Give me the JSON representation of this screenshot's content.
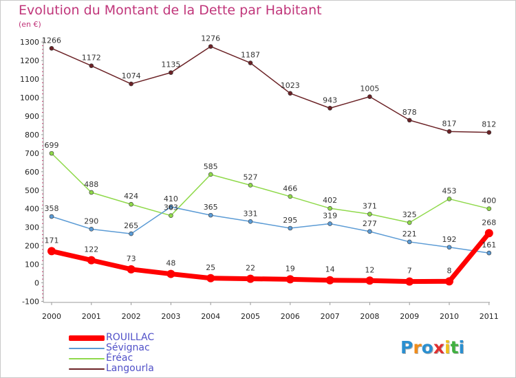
{
  "header": {
    "title": "Evolution du Montant de la Dette par Habitant",
    "subtitle": "(en €)"
  },
  "colors": {
    "title": "#c0357a",
    "ROUILLAC": "#ff0000",
    "Sévignac": "#5b9bd5",
    "Éréac": "#8fd94a",
    "Langourla": "#6b2226"
  },
  "logo": {
    "letters": [
      "P",
      "r",
      "o",
      "x",
      "i",
      "t",
      "i"
    ],
    "colors": [
      "#2a8fd0",
      "#f08c1a",
      "#2a8fd0",
      "#e03030",
      "#f0c01a",
      "#40b040",
      "#2a8fd0"
    ]
  },
  "chart_data": {
    "type": "line",
    "x": [
      "2000",
      "2001",
      "2002",
      "2003",
      "2004",
      "2005",
      "2006",
      "2007",
      "2008",
      "2009",
      "2010",
      "2011"
    ],
    "ylim": [
      -100,
      1300
    ],
    "yticks": [
      "-100",
      "0",
      "100",
      "200",
      "300",
      "400",
      "500",
      "600",
      "700",
      "800",
      "900",
      "1000",
      "1100",
      "1200",
      "1300"
    ],
    "xlabel": "",
    "ylabel": "",
    "grid": false,
    "legend_position": "bottom-left",
    "series": [
      {
        "name": "ROUILLAC",
        "values": [
          171,
          122,
          73,
          48,
          25,
          22,
          19,
          14,
          12,
          7,
          8,
          268
        ],
        "labels": [
          "171",
          "122",
          "73",
          "48",
          "25",
          "22",
          "19",
          "14",
          "12",
          "7",
          "8",
          "268"
        ]
      },
      {
        "name": "Sévignac",
        "values": [
          358,
          290,
          265,
          410,
          365,
          331,
          295,
          319,
          277,
          221,
          192,
          161
        ],
        "labels": [
          "358",
          "290",
          "265",
          "410",
          "365",
          "331",
          "295",
          "319",
          "277",
          "221",
          "192",
          "161"
        ]
      },
      {
        "name": "Éréac",
        "values": [
          699,
          488,
          424,
          363,
          585,
          527,
          466,
          402,
          371,
          325,
          453,
          400
        ],
        "labels": [
          "699",
          "488",
          "424",
          "363",
          "585",
          "527",
          "466",
          "402",
          "371",
          "325",
          "453",
          "400"
        ]
      },
      {
        "name": "Langourla",
        "values": [
          1266,
          1172,
          1074,
          1135,
          1276,
          1187,
          1023,
          943,
          1005,
          878,
          817,
          812
        ],
        "labels": [
          "1266",
          "1172",
          "1074",
          "1135",
          "1276",
          "1187",
          "1023",
          "943",
          "1005",
          "878",
          "817",
          "812"
        ]
      }
    ]
  }
}
